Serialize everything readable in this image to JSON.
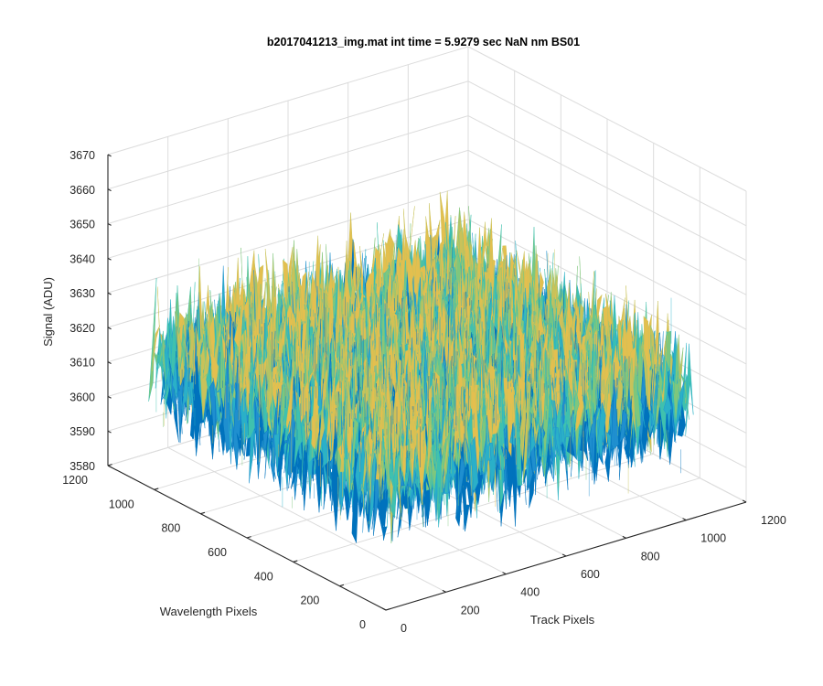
{
  "figure": {
    "title": "b2017041213_img.mat int time = 5.9279 sec  NaN nm BS01"
  },
  "chart_data": {
    "type": "surface",
    "title": "b2017041213_img.mat int time = 5.9279 sec  NaN nm BS01",
    "xlabel": "Track Pixels",
    "ylabel": "Wavelength Pixels",
    "zlabel": "Signal (ADU)",
    "x_range": [
      0,
      1200
    ],
    "y_range": [
      0,
      1200
    ],
    "z_range": [
      3580,
      3670
    ],
    "x_ticks": [
      "0",
      "200",
      "400",
      "600",
      "800",
      "1000",
      "1200"
    ],
    "y_ticks": [
      "0",
      "200",
      "400",
      "600",
      "800",
      "1000",
      "1200"
    ],
    "z_ticks": [
      "3580",
      "3590",
      "3600",
      "3610",
      "3620",
      "3630",
      "3640",
      "3650",
      "3660",
      "3670"
    ],
    "data_extent": {
      "x": [
        0,
        1024
      ],
      "y": [
        0,
        1024
      ]
    },
    "signal_mean": 3615,
    "signal_noise_range": [
      3590,
      3645
    ],
    "grid": true,
    "view": "3d-isometric",
    "colormap": "parula",
    "colors": [
      "#0072bd",
      "#1f8fcf",
      "#2ab0c8",
      "#3fc1ae",
      "#7ec77d",
      "#c8c25a",
      "#e3bf4f"
    ]
  }
}
